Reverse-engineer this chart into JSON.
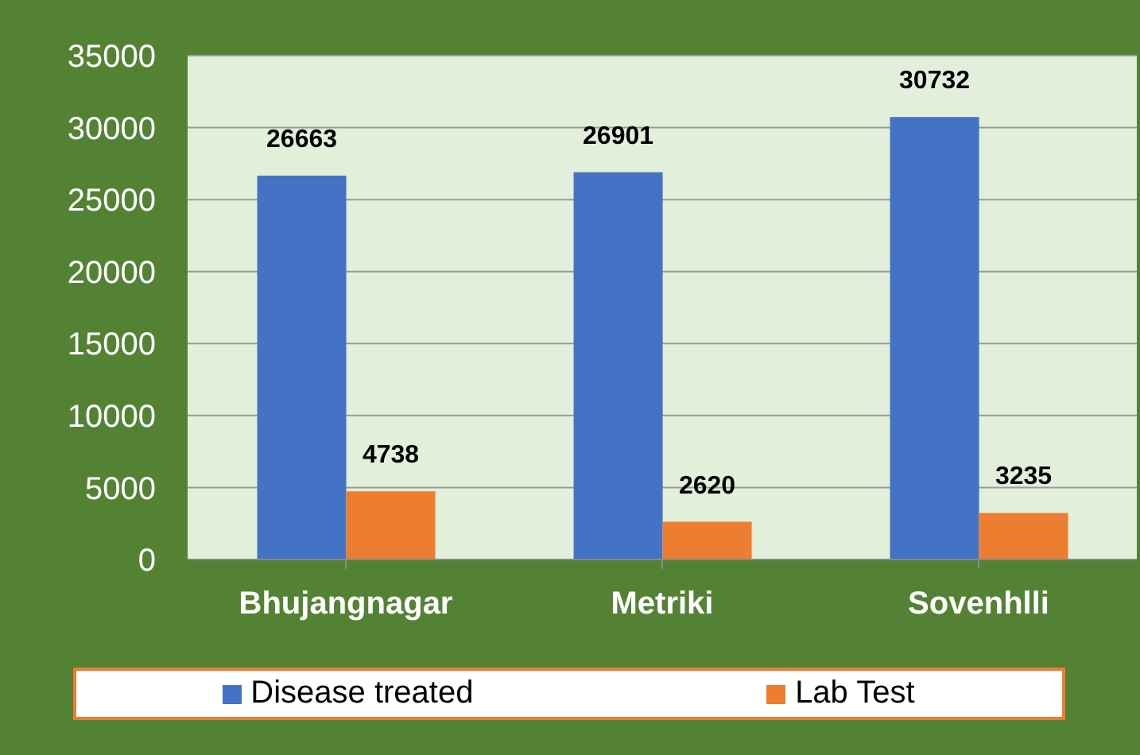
{
  "chart_data": {
    "type": "bar",
    "categories": [
      "Bhujangnagar",
      "Metriki",
      "Sovenhlli"
    ],
    "series": [
      {
        "name": "Disease treated",
        "color": "#4472c4",
        "values": [
          26663,
          26901,
          30732
        ]
      },
      {
        "name": "Lab Test",
        "color": "#ed7d31",
        "values": [
          4738,
          2620,
          3235
        ]
      }
    ],
    "ylim": [
      0,
      35000
    ],
    "yticks": [
      0,
      5000,
      10000,
      15000,
      20000,
      25000,
      30000,
      35000
    ],
    "grid": "y",
    "legend": "bottom",
    "data_labels": true
  }
}
